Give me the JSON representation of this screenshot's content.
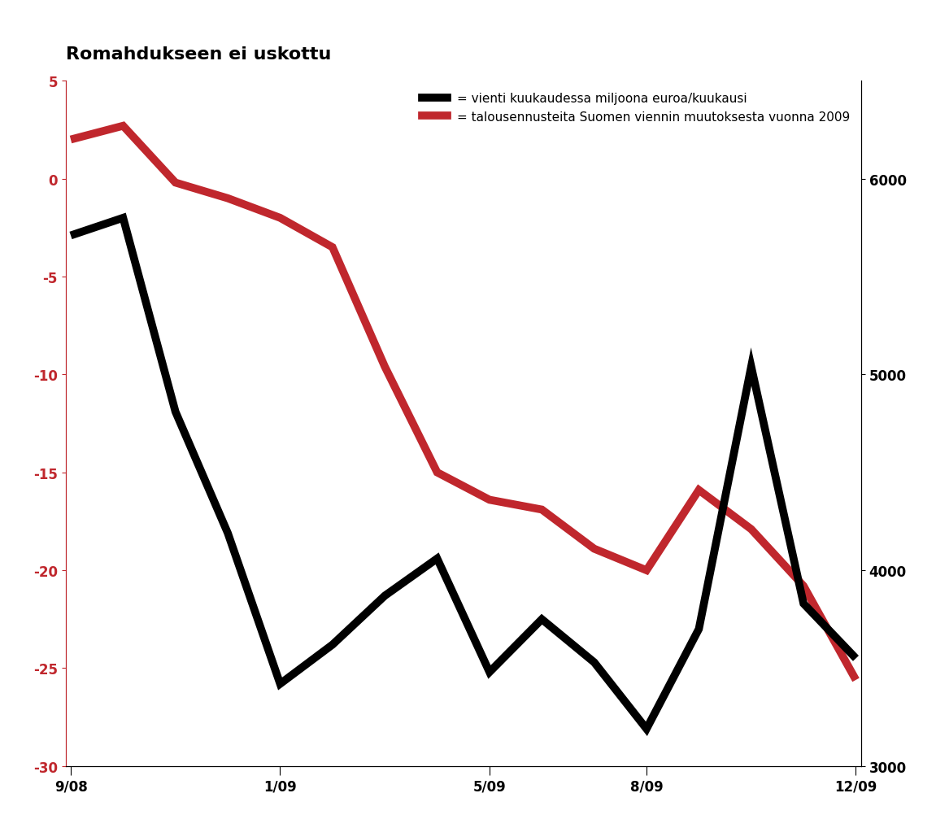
{
  "chart_data": {
    "type": "line",
    "title": "Romahdukseen ei uskottu",
    "categories": [
      "9/08",
      null,
      null,
      null,
      "1/09",
      null,
      null,
      null,
      "5/09",
      null,
      null,
      "8/09",
      null,
      null,
      null,
      "12/09"
    ],
    "series": [
      {
        "name": "= vienti kuukaudessa miljoona euroa/kuukausi",
        "color": "#000000",
        "axis": "y2",
        "values": [
          5710,
          5800,
          4810,
          4190,
          3420,
          3620,
          3870,
          4060,
          3480,
          3750,
          3530,
          3190,
          3700,
          5040,
          3830,
          3550
        ]
      },
      {
        "name": "= talousennusteita Suomen viennin muutoksesta vuonna 2009",
        "color": "#c0272d",
        "axis": "y",
        "values": [
          2,
          2.7,
          -0.2,
          -1,
          -2,
          -3.5,
          -9.6,
          -15,
          -16.4,
          -16.9,
          -18.9,
          -20,
          -15.9,
          -17.9,
          -20.8,
          -25.6
        ]
      }
    ],
    "ylim": [
      -30,
      5
    ],
    "yticks": [
      -30,
      -25,
      -20,
      -15,
      -10,
      -5,
      0,
      5
    ],
    "y2lim": [
      3000,
      6500
    ],
    "y2ticks": [
      3000,
      4000,
      5000,
      6000
    ],
    "legend": "upper right",
    "grid": false
  }
}
